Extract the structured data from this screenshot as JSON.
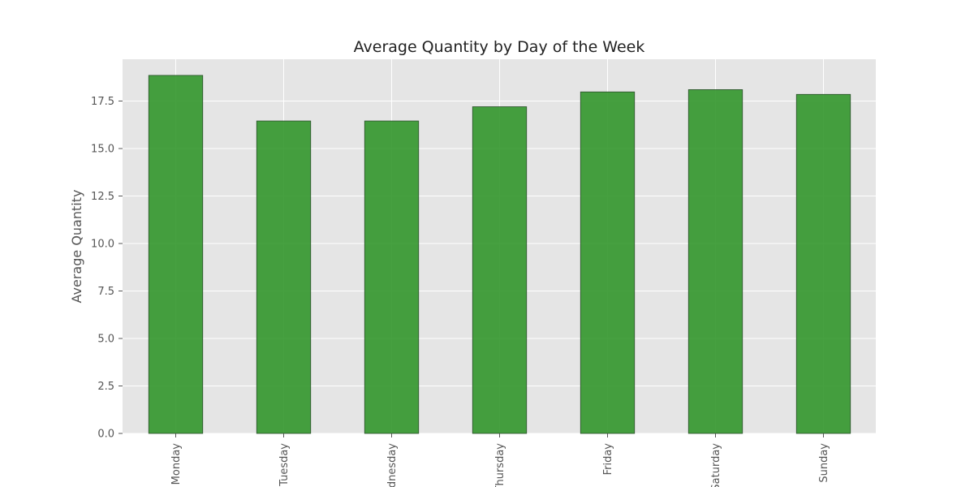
{
  "chart_data": {
    "type": "bar",
    "title": "Average Quantity by Day of the Week",
    "xlabel": "",
    "ylabel": "Average Quantity",
    "categories": [
      "Monday",
      "Tuesday",
      "Wednesday",
      "Thursday",
      "Friday",
      "Saturday",
      "Sunday"
    ],
    "values": [
      18.85,
      16.45,
      16.45,
      17.2,
      17.98,
      18.1,
      17.85
    ],
    "ylim": [
      0,
      19.7
    ],
    "yticks": [
      0,
      2.5,
      5,
      7.5,
      10,
      12.5,
      15,
      17.5
    ],
    "ytick_labels": [
      "0.0",
      "2.5",
      "5.0",
      "7.5",
      "10.0",
      "12.5",
      "15.0",
      "17.5"
    ],
    "grid": true,
    "legend": "none",
    "colors": {
      "bar_fill": "#2e9427",
      "bar_edge": "#2b4f2b",
      "plot_background": "#e5e5e5",
      "grid": "#ffffff"
    }
  }
}
